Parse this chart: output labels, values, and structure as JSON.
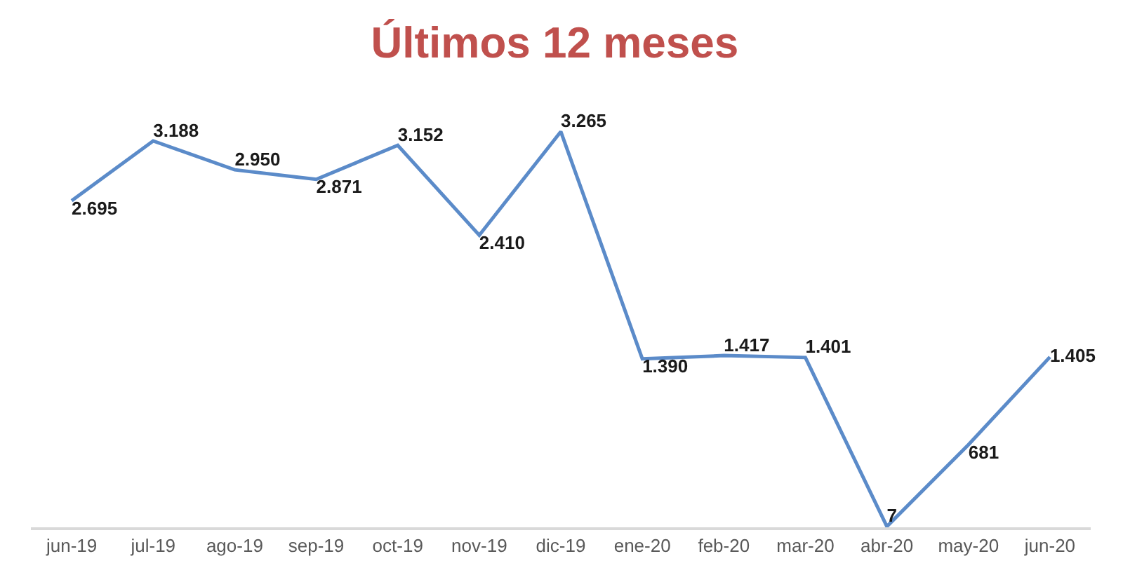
{
  "chart_data": {
    "type": "line",
    "title": "Últimos 12 meses",
    "categories": [
      "jun-19",
      "jul-19",
      "ago-19",
      "sep-19",
      "oct-19",
      "nov-19",
      "dic-19",
      "ene-20",
      "feb-20",
      "mar-20",
      "abr-20",
      "may-20",
      "jun-20"
    ],
    "series": [
      {
        "color": "#5b8bc9",
        "values": [
          2695,
          3188,
          2950,
          2871,
          3152,
          2410,
          3265,
          1390,
          1417,
          1401,
          7,
          681,
          1405
        ],
        "value_labels": [
          "2.695",
          "3.188",
          "2.950",
          "2.871",
          "3.152",
          "2.410",
          "3.265",
          "1.390",
          "1.417",
          "1.401",
          "7",
          "681",
          "1.405"
        ]
      }
    ],
    "tick_labels": "x"
  }
}
